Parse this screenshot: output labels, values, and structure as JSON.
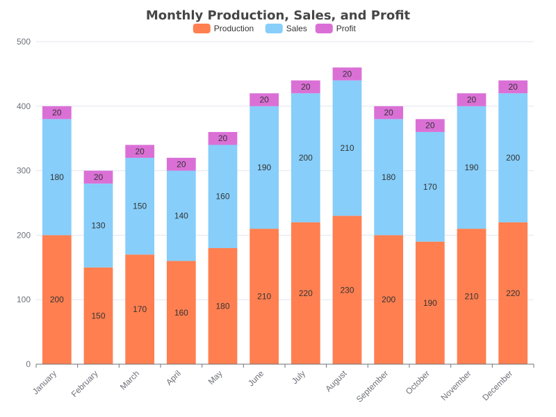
{
  "chart_data": {
    "type": "bar",
    "stacked": true,
    "title": "Monthly Production, Sales, and Profit",
    "xlabel": "",
    "ylabel": "",
    "ylim": [
      0,
      500
    ],
    "yticks": [
      0,
      100,
      200,
      300,
      400,
      500
    ],
    "grid": true,
    "legend_position": "top-center",
    "categories": [
      "January",
      "February",
      "March",
      "April",
      "May",
      "June",
      "July",
      "August",
      "September",
      "October",
      "November",
      "December"
    ],
    "series": [
      {
        "name": "Production",
        "color": "#ff7f50",
        "values": [
          200,
          150,
          170,
          160,
          180,
          210,
          220,
          230,
          200,
          190,
          210,
          220
        ]
      },
      {
        "name": "Sales",
        "color": "#87cefa",
        "values": [
          180,
          130,
          150,
          140,
          160,
          190,
          200,
          210,
          180,
          170,
          190,
          200
        ]
      },
      {
        "name": "Profit",
        "color": "#da70d6",
        "values": [
          20,
          20,
          20,
          20,
          20,
          20,
          20,
          20,
          20,
          20,
          20,
          20
        ]
      }
    ]
  }
}
